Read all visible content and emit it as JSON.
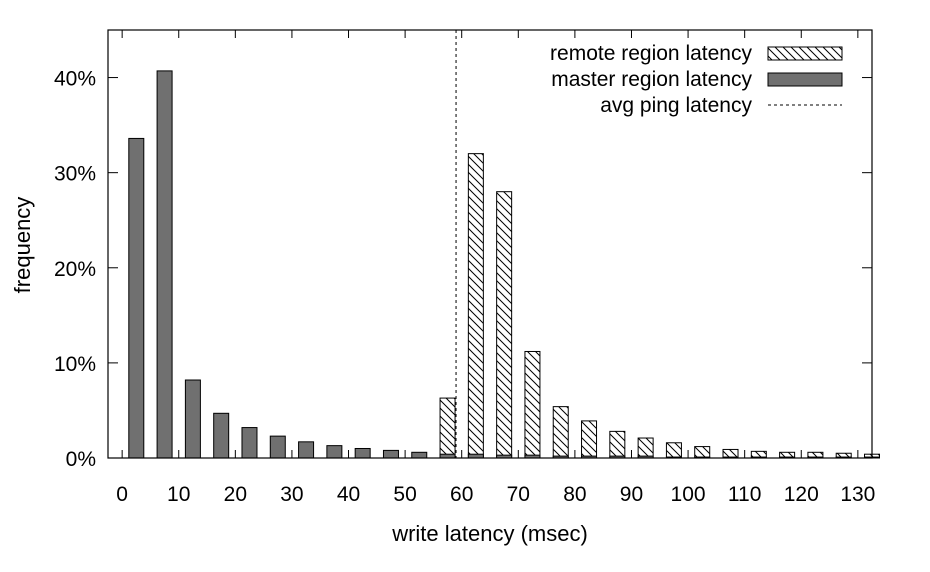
{
  "chart_data": {
    "type": "bar",
    "xlabel": "write latency (msec)",
    "ylabel": "frequency",
    "xlim": [
      -2.5,
      132.5
    ],
    "ylim": [
      0,
      45
    ],
    "x_ticks": [
      0,
      10,
      20,
      30,
      40,
      50,
      60,
      70,
      80,
      90,
      100,
      110,
      120,
      130
    ],
    "x_tick_labels": [
      "0",
      "10",
      "20",
      "30",
      "40",
      "50",
      "60",
      "70",
      "80",
      "90",
      "100",
      "110",
      "120",
      "130"
    ],
    "y_ticks": [
      0,
      10,
      20,
      30,
      40
    ],
    "y_tick_labels": [
      "0%",
      "10%",
      "20%",
      "30%",
      "40%"
    ],
    "grid": false,
    "legend_position": "top-right",
    "colors": {
      "master": "#707070",
      "remote_fill": "#ffffff",
      "hatch": "#000000",
      "ping_line": "#000000"
    },
    "series": [
      {
        "name": "remote region latency",
        "style": "hatched",
        "points": [
          {
            "x": 57.5,
            "y": 6.3
          },
          {
            "x": 62.5,
            "y": 32.0
          },
          {
            "x": 67.5,
            "y": 28.0
          },
          {
            "x": 72.5,
            "y": 11.2
          },
          {
            "x": 77.5,
            "y": 5.4
          },
          {
            "x": 82.5,
            "y": 3.9
          },
          {
            "x": 87.5,
            "y": 2.8
          },
          {
            "x": 92.5,
            "y": 2.1
          },
          {
            "x": 97.5,
            "y": 1.6
          },
          {
            "x": 102.5,
            "y": 1.2
          },
          {
            "x": 107.5,
            "y": 0.9
          },
          {
            "x": 112.5,
            "y": 0.7
          },
          {
            "x": 117.5,
            "y": 0.6
          },
          {
            "x": 122.5,
            "y": 0.6
          },
          {
            "x": 127.5,
            "y": 0.5
          },
          {
            "x": 132.5,
            "y": 0.4
          }
        ]
      },
      {
        "name": "master region latency",
        "style": "solid",
        "points": [
          {
            "x": 2.5,
            "y": 33.6
          },
          {
            "x": 7.5,
            "y": 40.7
          },
          {
            "x": 12.5,
            "y": 8.2
          },
          {
            "x": 17.5,
            "y": 4.7
          },
          {
            "x": 22.5,
            "y": 3.2
          },
          {
            "x": 27.5,
            "y": 2.3
          },
          {
            "x": 32.5,
            "y": 1.7
          },
          {
            "x": 37.5,
            "y": 1.3
          },
          {
            "x": 42.5,
            "y": 1.0
          },
          {
            "x": 47.5,
            "y": 0.8
          },
          {
            "x": 52.5,
            "y": 0.6
          },
          {
            "x": 57.5,
            "y": 0.4
          },
          {
            "x": 62.5,
            "y": 0.4
          },
          {
            "x": 67.5,
            "y": 0.3
          },
          {
            "x": 72.5,
            "y": 0.3
          },
          {
            "x": 77.5,
            "y": 0.2
          },
          {
            "x": 82.5,
            "y": 0.2
          },
          {
            "x": 87.5,
            "y": 0.2
          },
          {
            "x": 92.5,
            "y": 0.2
          },
          {
            "x": 97.5,
            "y": 0.1
          },
          {
            "x": 102.5,
            "y": 0.1
          },
          {
            "x": 107.5,
            "y": 0.1
          },
          {
            "x": 112.5,
            "y": 0.1
          },
          {
            "x": 117.5,
            "y": 0.1
          },
          {
            "x": 122.5,
            "y": 0.1
          },
          {
            "x": 127.5,
            "y": 0.1
          },
          {
            "x": 132.5,
            "y": 0.1
          }
        ]
      }
    ],
    "reference_lines": [
      {
        "name": "avg ping latency",
        "axis": "x",
        "value": 59,
        "style": "dashed"
      }
    ]
  }
}
